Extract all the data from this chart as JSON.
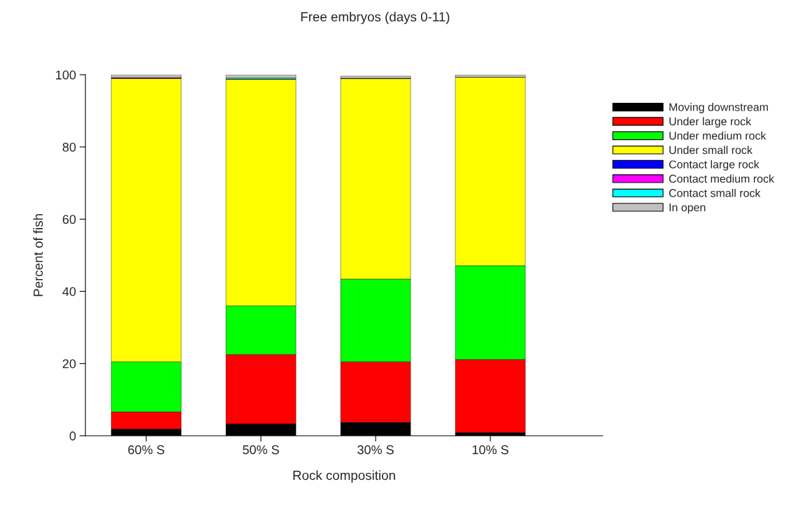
{
  "chart_data": {
    "type": "bar",
    "title": "Free embryos (days 0-11)",
    "xlabel": "Rock composition",
    "ylabel": "Percent of fish",
    "categories": [
      "60% S",
      "50% S",
      "30% S",
      "10% S"
    ],
    "stacked": true,
    "ylim": [
      0,
      100
    ],
    "yticks": [
      0,
      20,
      40,
      60,
      80,
      100
    ],
    "grid": false,
    "legend": "top right",
    "series": [
      {
        "name": "Moving downstream",
        "color": "#000000",
        "values": [
          1.9,
          3.3,
          3.7,
          0.9
        ]
      },
      {
        "name": "Under large rock",
        "color": "#ff0000",
        "values": [
          4.7,
          19.2,
          16.8,
          20.2
        ]
      },
      {
        "name": "Under medium rock",
        "color": "#00ff00",
        "values": [
          13.9,
          13.5,
          22.9,
          26.0
        ]
      },
      {
        "name": "Under small rock",
        "color": "#ffff00",
        "values": [
          78.5,
          62.8,
          55.6,
          52.2
        ]
      },
      {
        "name": "Contact large rock",
        "color": "#0000ff",
        "values": [
          0,
          0,
          0,
          0
        ]
      },
      {
        "name": "Contact medium rock",
        "color": "#ff00ff",
        "values": [
          0.2,
          0,
          0,
          0
        ]
      },
      {
        "name": "Contact small rock",
        "color": "#00ffff",
        "values": [
          0,
          0.3,
          0,
          0
        ]
      },
      {
        "name": "In open",
        "color": "#c0c0c0",
        "values": [
          0.8,
          0.9,
          0.6,
          0.7
        ]
      }
    ]
  }
}
